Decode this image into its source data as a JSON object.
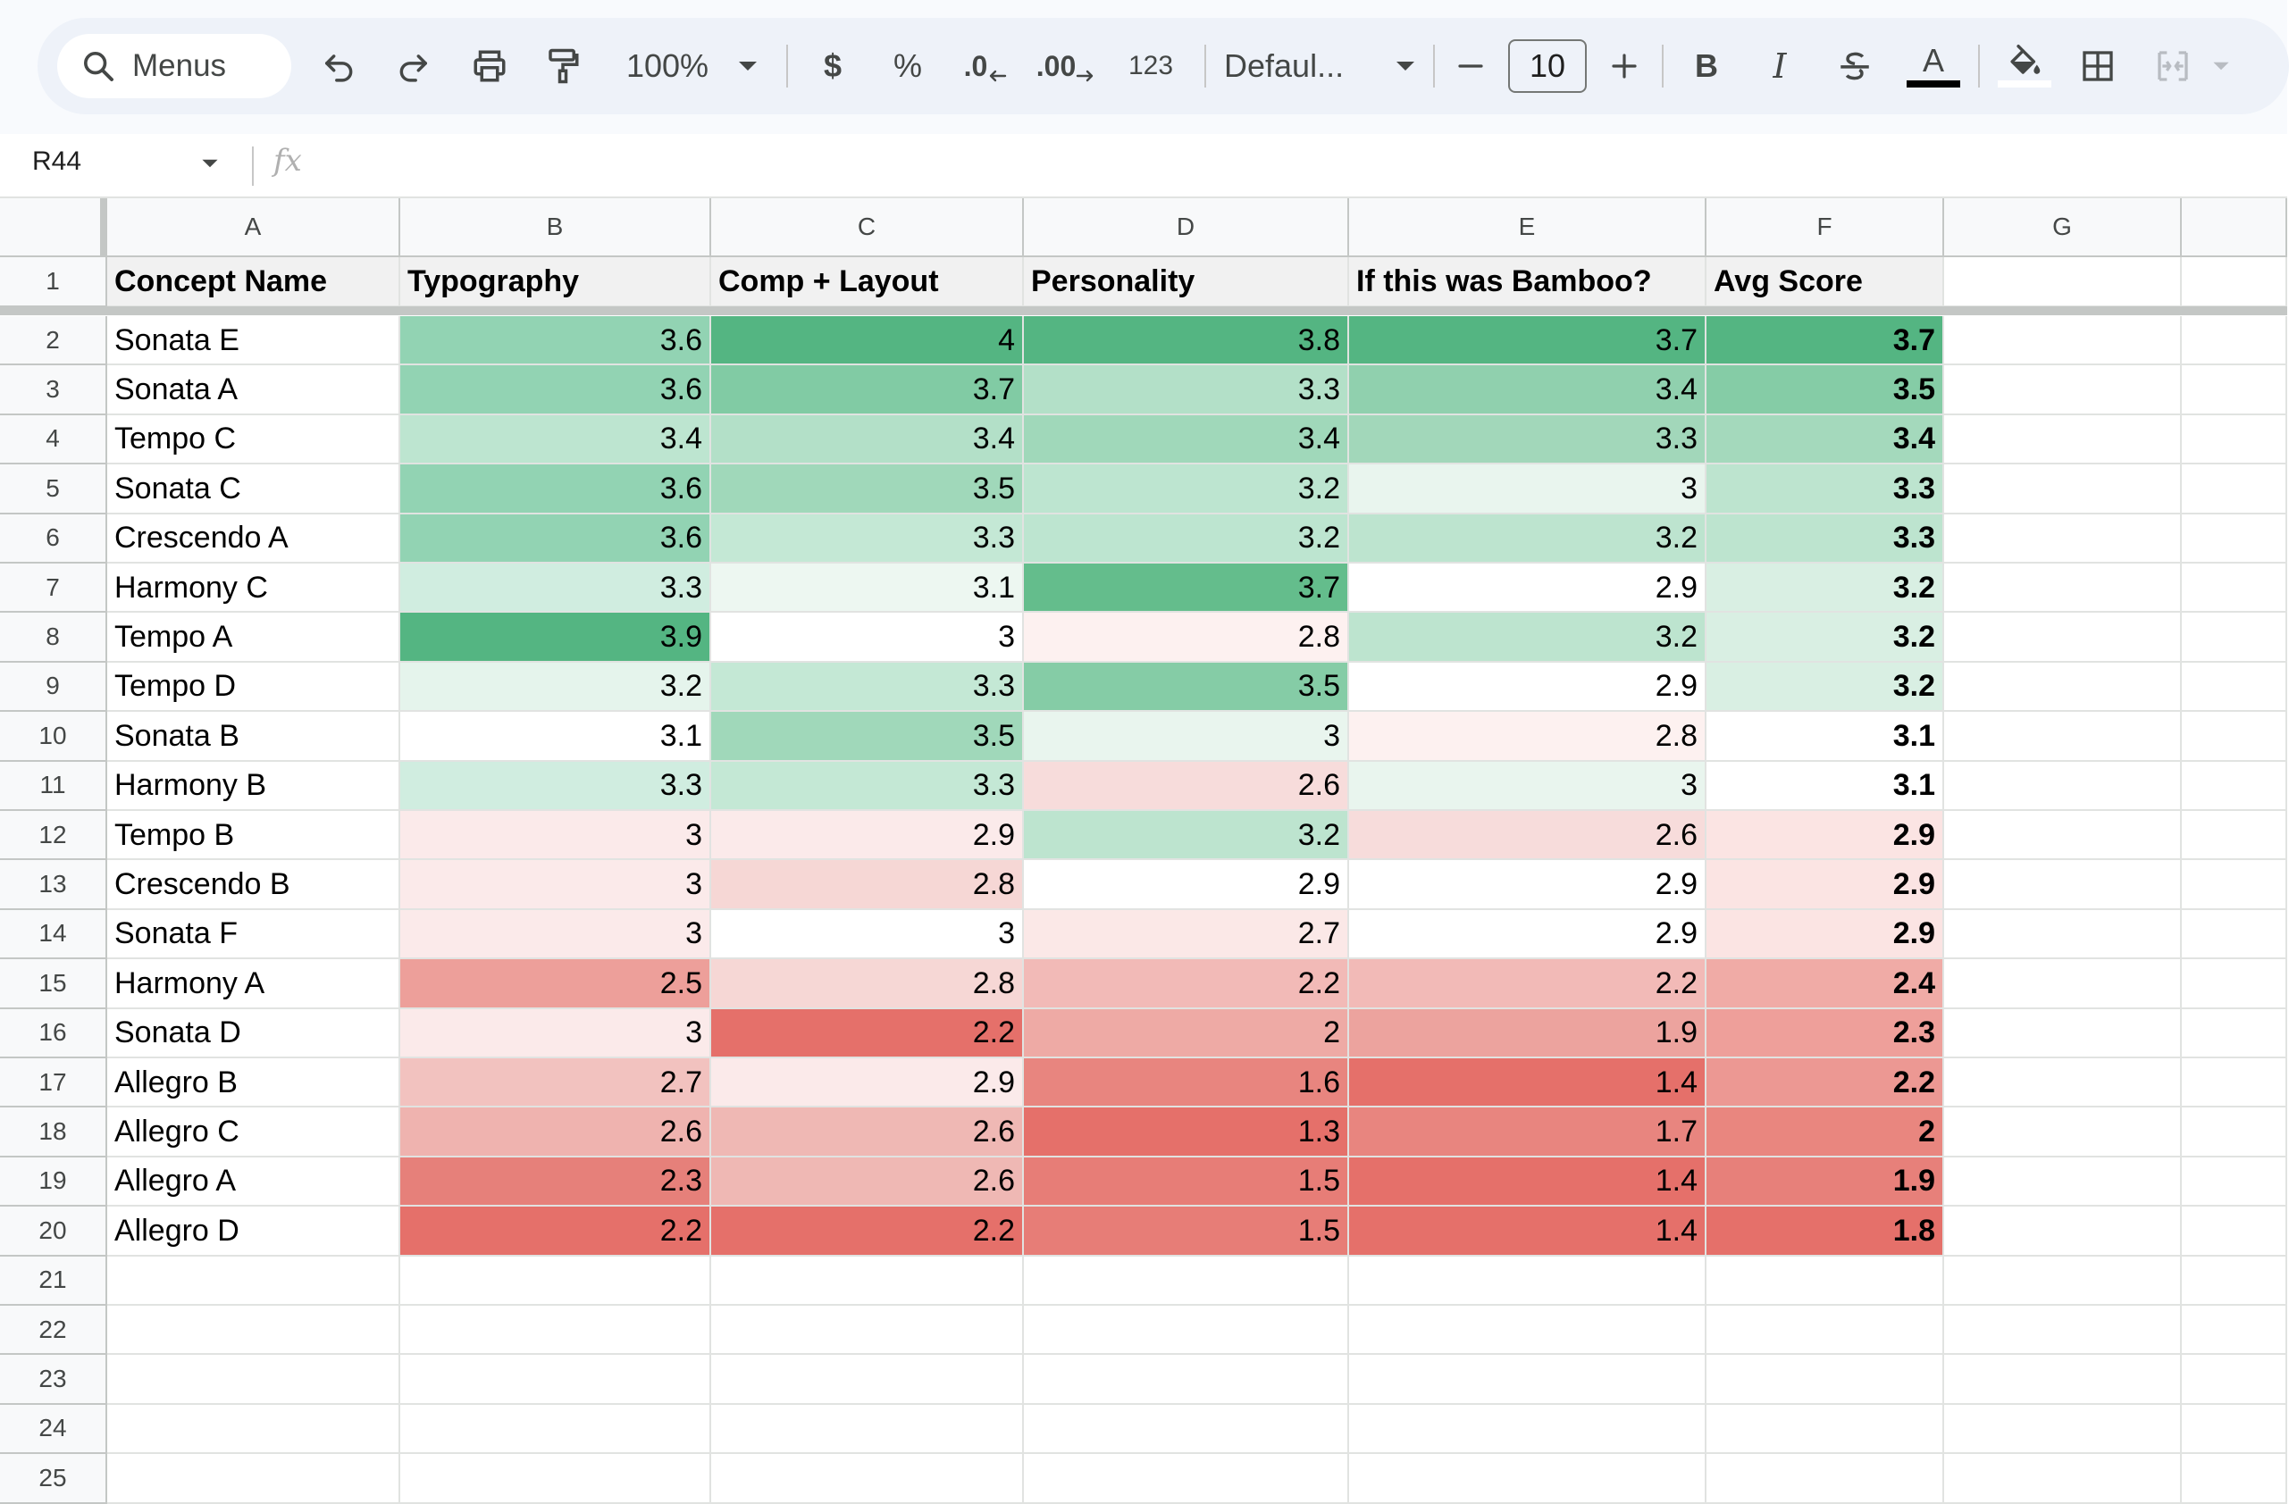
{
  "toolbar": {
    "search_label": "Menus",
    "zoom": "100%",
    "currency": "$",
    "percent": "%",
    "decrease_decimal": ".0",
    "increase_decimal": ".00",
    "number_format": "123",
    "font_family": "Defaul...",
    "font_size": "10",
    "bold": "B",
    "italic": "I",
    "text_color": "A",
    "text_color_hex": "#000000"
  },
  "formula_bar": {
    "cell_ref": "R44",
    "fx": "fx",
    "value": ""
  },
  "columns": [
    "A",
    "B",
    "C",
    "D",
    "E",
    "F",
    "G"
  ],
  "row_numbers": [
    "1",
    "2",
    "3",
    "4",
    "5",
    "6",
    "7",
    "8",
    "9",
    "10",
    "11",
    "12",
    "13",
    "14",
    "15",
    "16",
    "17",
    "18",
    "19",
    "20",
    "21",
    "22",
    "23",
    "24",
    "25"
  ],
  "sheet": {
    "headers": [
      "Concept Name",
      "Typography",
      "Comp + Layout",
      "Personality",
      "If this was Bamboo?",
      "Avg Score"
    ],
    "rows": [
      [
        "Sonata E",
        "3.6",
        "4",
        "3.8",
        "3.7",
        "3.7"
      ],
      [
        "Sonata A",
        "3.6",
        "3.7",
        "3.3",
        "3.4",
        "3.5"
      ],
      [
        "Tempo C",
        "3.4",
        "3.4",
        "3.4",
        "3.3",
        "3.4"
      ],
      [
        "Sonata C",
        "3.6",
        "3.5",
        "3.2",
        "3",
        "3.3"
      ],
      [
        "Crescendo A",
        "3.6",
        "3.3",
        "3.2",
        "3.2",
        "3.3"
      ],
      [
        "Harmony C",
        "3.3",
        "3.1",
        "3.7",
        "2.9",
        "3.2"
      ],
      [
        "Tempo A",
        "3.9",
        "3",
        "2.8",
        "3.2",
        "3.2"
      ],
      [
        "Tempo D",
        "3.2",
        "3.3",
        "3.5",
        "2.9",
        "3.2"
      ],
      [
        "Sonata B",
        "3.1",
        "3.5",
        "3",
        "2.8",
        "3.1"
      ],
      [
        "Harmony B",
        "3.3",
        "3.3",
        "2.6",
        "3",
        "3.1"
      ],
      [
        "Tempo B",
        "3",
        "2.9",
        "3.2",
        "2.6",
        "2.9"
      ],
      [
        "Crescendo B",
        "3",
        "2.8",
        "2.9",
        "2.9",
        "2.9"
      ],
      [
        "Sonata F",
        "3",
        "3",
        "2.7",
        "2.9",
        "2.9"
      ],
      [
        "Harmony A",
        "2.5",
        "2.8",
        "2.2",
        "2.2",
        "2.4"
      ],
      [
        "Sonata D",
        "3",
        "2.2",
        "2",
        "1.9",
        "2.3"
      ],
      [
        "Allegro B",
        "2.7",
        "2.9",
        "1.6",
        "1.4",
        "2.2"
      ],
      [
        "Allegro C",
        "2.6",
        "2.6",
        "1.3",
        "1.7",
        "2"
      ],
      [
        "Allegro A",
        "2.3",
        "2.6",
        "1.5",
        "1.4",
        "1.9"
      ],
      [
        "Allegro D",
        "2.2",
        "2.2",
        "1.5",
        "1.4",
        "1.8"
      ]
    ],
    "fills": [
      [
        "#92d3b3",
        "#54b582",
        "#54b582",
        "#54b582",
        "#54b582"
      ],
      [
        "#92d3b3",
        "#81cba4",
        "#b3e0c8",
        "#90d0ae",
        "#85cca6"
      ],
      [
        "#bde5d0",
        "#b3e0c8",
        "#a0d8ba",
        "#a2d7ba",
        "#a4d9bc"
      ],
      [
        "#92d3b3",
        "#a0d8ba",
        "#bde5d0",
        "#e9f5ee",
        "#bde4cf"
      ],
      [
        "#92d3b3",
        "#c4e8d5",
        "#bde5d0",
        "#bde4cf",
        "#bde4cf"
      ],
      [
        "#d0ede0",
        "#edf7f1",
        "#64bd8c",
        "#ffffff",
        "#d9efe3"
      ],
      [
        "#54b582",
        "#ffffff",
        "#fdf1f0",
        "#bde4cf",
        "#d9efe3"
      ],
      [
        "#e5f4ec",
        "#c4e8d5",
        "#85cca6",
        "#ffffff",
        "#d9efe3"
      ],
      [
        "#ffffff",
        "#a0d8ba",
        "#e9f5ee",
        "#fdf1f0",
        "#ffffff"
      ],
      [
        "#d0ede0",
        "#c4e8d5",
        "#f7dcdb",
        "#e9f5ee",
        "#ffffff"
      ],
      [
        "#fbeaea",
        "#fbeaea",
        "#bde4cf",
        "#f7dcdb",
        "#fbe4e3"
      ],
      [
        "#fbeaea",
        "#f6d7d5",
        "#ffffff",
        "#ffffff",
        "#fbe4e3"
      ],
      [
        "#fbeaea",
        "#ffffff",
        "#fbe8e7",
        "#ffffff",
        "#fbe4e3"
      ],
      [
        "#ed9f9a",
        "#f6d7d5",
        "#f2bab7",
        "#f2bab7",
        "#f0aba6"
      ],
      [
        "#fbeaea",
        "#e5706a",
        "#eeaaa5",
        "#eca39e",
        "#ee9f9a"
      ],
      [
        "#f2c2bf",
        "#fbeaea",
        "#e8857f",
        "#e5706a",
        "#ec9893"
      ],
      [
        "#efb3af",
        "#efb8b4",
        "#e5706a",
        "#e8857f",
        "#e9867f"
      ],
      [
        "#e6807a",
        "#efb8b4",
        "#e77d77",
        "#e5706a",
        "#e7807a"
      ],
      [
        "#e5706a",
        "#e5706a",
        "#e77d77",
        "#e5706a",
        "#e5706a"
      ]
    ]
  }
}
